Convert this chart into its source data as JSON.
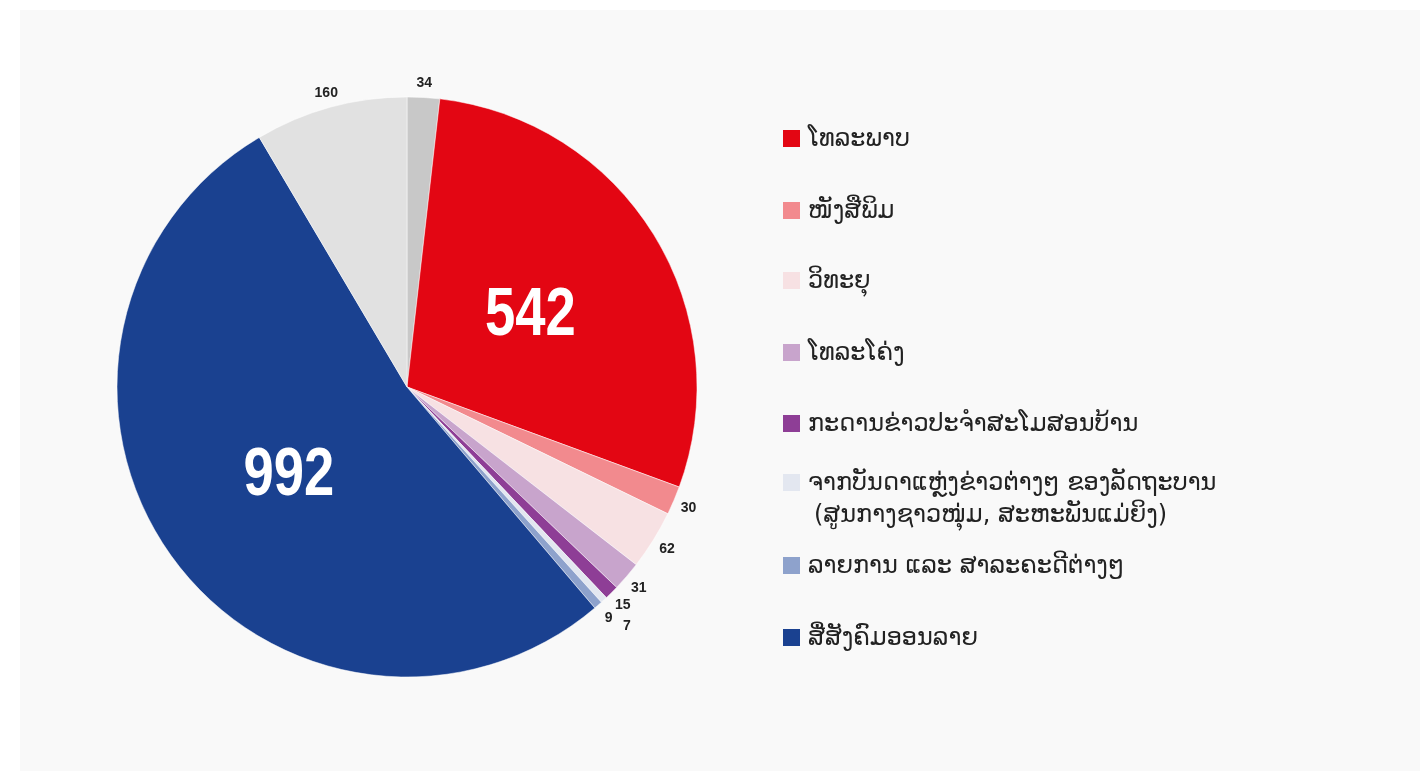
{
  "chart_data": {
    "type": "pie",
    "categories": [
      null,
      "ໂທລະພາບ",
      "ໜັງສືພິມ",
      "ວິທະຍຸ",
      "ໂທລະໂຄ່ງ",
      "ກະດານຂ່າວປະຈຳສະໂມສອນບ້ານ",
      "ຈາກບັນດາແຫຼ່ງຂ່າວຕ່າງໆ ຂອງລັດຖະບານ\n(ສູນກາງຊາວໜຸ່ມ, ສະຫະພັນແມ່ຍິງ)",
      "ລາຍການ ແລະ ສາລະຄະດີຕ່າງໆ",
      "ສື່ສັງຄົມອອນລາຍ",
      null
    ],
    "values": [
      34,
      542,
      30,
      62,
      31,
      15,
      7,
      9,
      992,
      160
    ],
    "colors": [
      "#c8c8c8",
      "#e30613",
      "#f28a8e",
      "#f7e1e3",
      "#c8a4cc",
      "#8e3e96",
      "#e3e7f0",
      "#8ea2cc",
      "#1a4190",
      "#e1e1e1"
    ],
    "data_labels": true,
    "legend": "right"
  }
}
